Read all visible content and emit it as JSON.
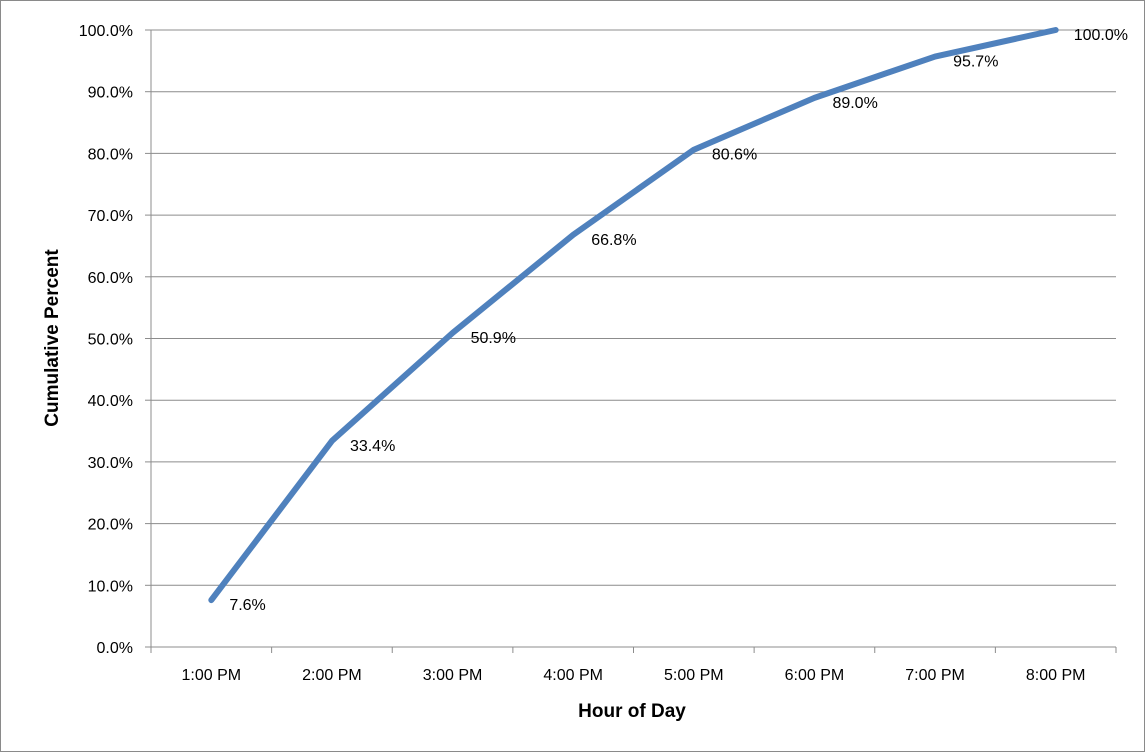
{
  "chart_data": {
    "type": "line",
    "title": "",
    "xlabel": "Hour of Day",
    "ylabel": "Cumulative Percent",
    "categories": [
      "1:00 PM",
      "2:00 PM",
      "3:00 PM",
      "4:00 PM",
      "5:00 PM",
      "6:00 PM",
      "7:00 PM",
      "8:00 PM"
    ],
    "series": [
      {
        "values": [
          7.6,
          33.4,
          50.9,
          66.8,
          80.6,
          89.0,
          95.7,
          100.0
        ],
        "data_labels": [
          "7.6%",
          "33.4%",
          "50.9%",
          "66.8%",
          "80.6%",
          "89.0%",
          "95.7%",
          "100.0%"
        ],
        "color": "#4f81bd"
      }
    ],
    "ylim": [
      0,
      100
    ],
    "yticks": [
      "0.0%",
      "10.0%",
      "20.0%",
      "30.0%",
      "40.0%",
      "50.0%",
      "60.0%",
      "70.0%",
      "80.0%",
      "90.0%",
      "100.0%"
    ],
    "grid": true,
    "legend": "none"
  }
}
